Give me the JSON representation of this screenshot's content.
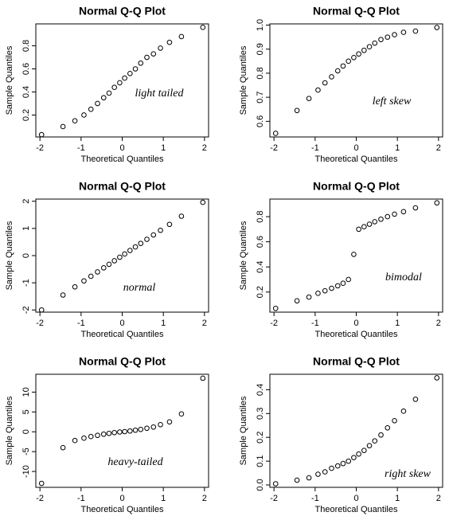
{
  "chart_data": [
    {
      "type": "scatter",
      "title": "Normal Q-Q Plot",
      "x_label": "Theoretical Quantiles",
      "y_label": "Sample Quantiles",
      "annotation": "light tailed",
      "x": [
        -1.96,
        -1.44,
        -1.15,
        -0.93,
        -0.76,
        -0.6,
        -0.45,
        -0.32,
        -0.19,
        -0.06,
        0.06,
        0.19,
        0.32,
        0.45,
        0.6,
        0.76,
        0.93,
        1.15,
        1.44,
        1.96
      ],
      "values": [
        0.03,
        0.1,
        0.15,
        0.2,
        0.25,
        0.3,
        0.35,
        0.39,
        0.44,
        0.48,
        0.52,
        0.56,
        0.6,
        0.65,
        0.7,
        0.73,
        0.78,
        0.83,
        0.88,
        0.96
      ],
      "xlim": [
        -2.1,
        2.1
      ],
      "ylim": [
        0.01,
        0.99
      ],
      "xticks": [
        -2,
        -1,
        0,
        1,
        2
      ],
      "yticks": [
        0.2,
        0.4,
        0.6,
        0.8
      ]
    },
    {
      "type": "scatter",
      "title": "Normal Q-Q Plot",
      "x_label": "Theoretical Quantiles",
      "y_label": "Sample Quantiles",
      "annotation": "left skew",
      "x": [
        -1.96,
        -1.44,
        -1.15,
        -0.93,
        -0.76,
        -0.6,
        -0.45,
        -0.32,
        -0.19,
        -0.06,
        0.06,
        0.19,
        0.32,
        0.45,
        0.6,
        0.76,
        0.93,
        1.15,
        1.44,
        1.96
      ],
      "values": [
        0.55,
        0.645,
        0.695,
        0.73,
        0.76,
        0.785,
        0.81,
        0.83,
        0.85,
        0.865,
        0.88,
        0.895,
        0.91,
        0.925,
        0.94,
        0.95,
        0.96,
        0.97,
        0.975,
        0.99
      ],
      "xlim": [
        -2.1,
        2.1
      ],
      "ylim": [
        0.535,
        1.005
      ],
      "xticks": [
        -2,
        -1,
        0,
        1,
        2
      ],
      "yticks": [
        0.6,
        0.7,
        0.8,
        0.9,
        {
          "value": 1,
          "label": "1.0"
        }
      ]
    },
    {
      "type": "scatter",
      "title": "Normal Q-Q Plot",
      "x_label": "Theoretical Quantiles",
      "y_label": "Sample Quantiles",
      "annotation": "normal",
      "x": [
        -1.96,
        -1.44,
        -1.15,
        -0.93,
        -0.76,
        -0.6,
        -0.45,
        -0.32,
        -0.19,
        -0.06,
        0.06,
        0.19,
        0.32,
        0.45,
        0.6,
        0.76,
        0.93,
        1.15,
        1.44,
        1.96
      ],
      "values": [
        -2,
        -1.45,
        -1.15,
        -0.93,
        -0.76,
        -0.6,
        -0.45,
        -0.32,
        -0.19,
        -0.06,
        0.06,
        0.19,
        0.32,
        0.45,
        0.6,
        0.76,
        0.93,
        1.15,
        1.45,
        1.96
      ],
      "xlim": [
        -2.1,
        2.1
      ],
      "ylim": [
        -2.08,
        2.08
      ],
      "xticks": [
        -2,
        -1,
        0,
        1,
        2
      ],
      "yticks": [
        -2,
        -1,
        0,
        1,
        2
      ]
    },
    {
      "type": "scatter",
      "title": "Normal Q-Q Plot",
      "x_label": "Theoretical Quantiles",
      "y_label": "Sample Quantiles",
      "annotation": "bimodal",
      "x": [
        -1.96,
        -1.44,
        -1.15,
        -0.93,
        -0.76,
        -0.6,
        -0.45,
        -0.32,
        -0.19,
        -0.06,
        0.06,
        0.19,
        0.32,
        0.45,
        0.6,
        0.76,
        0.93,
        1.15,
        1.44,
        1.96
      ],
      "values": [
        0.07,
        0.13,
        0.16,
        0.19,
        0.21,
        0.23,
        0.25,
        0.27,
        0.3,
        0.5,
        0.7,
        0.72,
        0.74,
        0.76,
        0.78,
        0.8,
        0.82,
        0.84,
        0.87,
        0.91
      ],
      "xlim": [
        -2.1,
        2.1
      ],
      "ylim": [
        0.04,
        0.94
      ],
      "xticks": [
        -2,
        -1,
        0,
        1,
        2
      ],
      "yticks": [
        0.2,
        0.4,
        0.6,
        0.8
      ]
    },
    {
      "type": "scatter",
      "title": "Normal Q-Q Plot",
      "x_label": "Theoretical Quantiles",
      "y_label": "Sample Quantiles",
      "annotation": "heavy-tailed",
      "x": [
        -1.96,
        -1.44,
        -1.15,
        -0.93,
        -0.76,
        -0.6,
        -0.45,
        -0.32,
        -0.19,
        -0.06,
        0.06,
        0.19,
        0.32,
        0.45,
        0.6,
        0.76,
        0.93,
        1.15,
        1.44,
        1.96
      ],
      "values": [
        -13,
        -4,
        -2.2,
        -1.6,
        -1.2,
        -0.9,
        -0.6,
        -0.4,
        -0.2,
        -0.05,
        0.05,
        0.2,
        0.4,
        0.6,
        0.9,
        1.2,
        1.8,
        2.5,
        4.5,
        13.5
      ],
      "xlim": [
        -2.1,
        2.1
      ],
      "ylim": [
        -14,
        14.5
      ],
      "xticks": [
        -2,
        -1,
        0,
        1,
        2
      ],
      "yticks": [
        -10,
        -5,
        0,
        5,
        10
      ]
    },
    {
      "type": "scatter",
      "title": "Normal Q-Q Plot",
      "x_label": "Theoretical Quantiles",
      "y_label": "Sample Quantiles",
      "annotation": "right skew",
      "x": [
        -1.96,
        -1.44,
        -1.15,
        -0.93,
        -0.76,
        -0.6,
        -0.45,
        -0.32,
        -0.19,
        -0.06,
        0.06,
        0.19,
        0.32,
        0.45,
        0.6,
        0.76,
        0.93,
        1.15,
        1.44,
        1.96
      ],
      "values": [
        0.005,
        0.02,
        0.03,
        0.045,
        0.055,
        0.07,
        0.08,
        0.09,
        0.1,
        0.115,
        0.13,
        0.145,
        0.165,
        0.185,
        0.21,
        0.24,
        0.27,
        0.31,
        0.36,
        0.45
      ],
      "xlim": [
        -2.1,
        2.1
      ],
      "ylim": [
        -0.01,
        0.465
      ],
      "xticks": [
        -2,
        -1,
        0,
        1,
        2
      ],
      "yticks": [
        {
          "value": 0,
          "label": "0.0"
        },
        0.1,
        0.2,
        0.3,
        0.4
      ]
    }
  ]
}
